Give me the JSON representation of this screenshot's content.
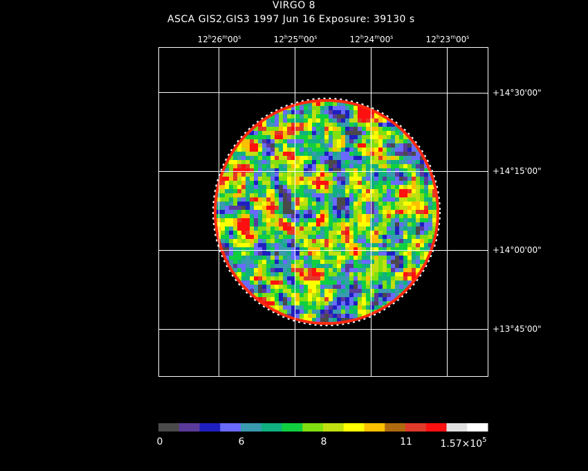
{
  "header": {
    "title": "VIRGO 8",
    "subtitle": "ASCA GIS2,GIS3    1997 Jun 16    Exposure: 39130 s"
  },
  "ra_axis": {
    "ticks": [
      {
        "h": "12",
        "m": "26",
        "s": "00"
      },
      {
        "h": "12",
        "m": "25",
        "s": "00"
      },
      {
        "h": "12",
        "m": "24",
        "s": "00"
      },
      {
        "h": "12",
        "m": "23",
        "s": "00"
      }
    ]
  },
  "dec_axis": {
    "ticks": [
      "+14°30'00\"",
      "+14°15'00\"",
      "+14°00'00\"",
      "+13°45'00\""
    ]
  },
  "colorbar": {
    "colors": [
      "#4a4a4a",
      "#5a3a9a",
      "#1f1fc0",
      "#6a6aff",
      "#3a9ab0",
      "#10b080",
      "#10d040",
      "#80e010",
      "#c0e010",
      "#ffff00",
      "#ffc000",
      "#b06a10",
      "#e03a2a",
      "#ff1010",
      "#e0e0e0",
      "#ffffff"
    ],
    "labels": [
      "0",
      "6",
      "8",
      "11"
    ],
    "max_label_mantissa": "1.57×10",
    "max_label_exp": "5"
  }
}
